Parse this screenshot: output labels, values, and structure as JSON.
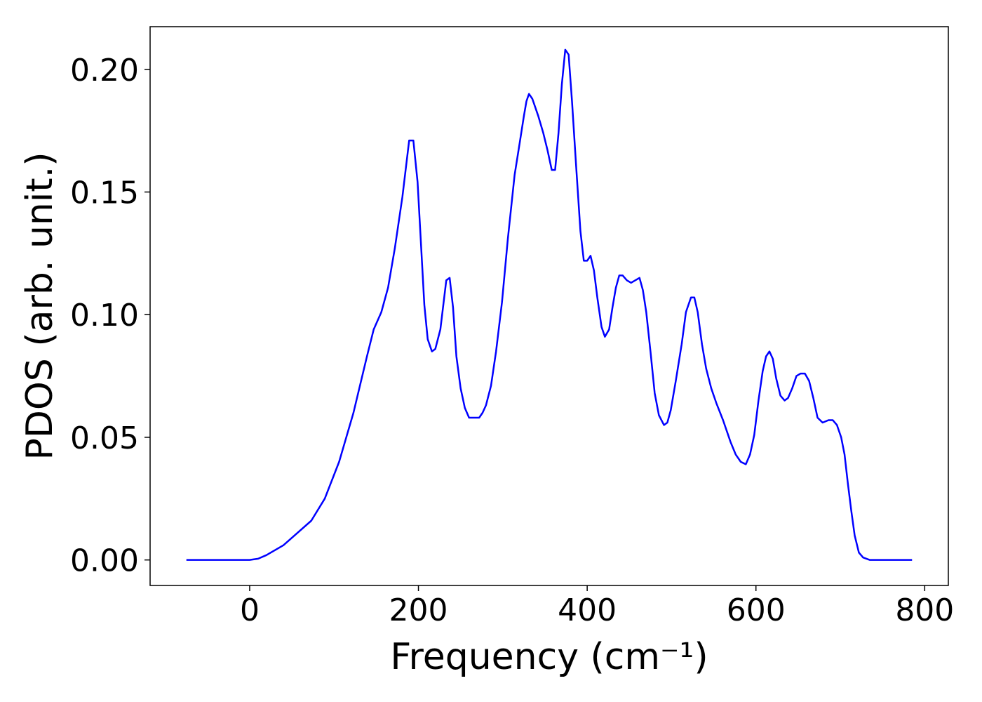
{
  "chart_data": {
    "type": "line",
    "x_label": "Frequency (cm⁻¹)",
    "y_label": "PDOS (arb. unit.)",
    "xlim": [
      -118,
      828
    ],
    "ylim": [
      -0.0104,
      0.2174
    ],
    "xticks": [
      0,
      200,
      400,
      600,
      800
    ],
    "yticks": [
      {
        "value": 0,
        "label": "0.00"
      },
      {
        "value": 0.05,
        "label": "0.05"
      },
      {
        "value": 0.1,
        "label": "0.10"
      },
      {
        "value": 0.15,
        "label": "0.15"
      },
      {
        "value": 0.2,
        "label": "0.20"
      }
    ],
    "grid": false,
    "series": [
      {
        "color": "#0000ff",
        "x": [
          -75,
          0,
          10,
          20,
          30,
          40,
          73,
          89,
          106,
          123,
          139,
          147,
          156,
          164,
          172,
          181,
          189,
          194,
          199,
          207,
          211,
          216,
          220,
          226,
          233,
          237,
          241,
          245,
          250,
          255,
          260,
          267,
          272,
          276,
          280,
          286,
          292,
          299,
          306,
          314,
          320,
          325,
          328,
          331,
          335,
          342,
          348,
          353,
          358,
          362,
          366,
          370,
          374,
          378,
          382,
          387,
          392,
          396,
          400,
          404,
          408,
          412,
          417,
          421,
          426,
          430,
          434,
          438,
          442,
          447,
          452,
          457,
          462,
          466,
          470,
          475,
          480,
          485,
          491,
          495,
          499,
          505,
          512,
          517,
          523,
          527,
          531,
          536,
          541,
          547,
          553,
          561,
          570,
          576,
          582,
          588,
          593,
          598,
          603,
          608,
          612,
          616,
          620,
          624,
          629,
          634,
          638,
          643,
          648,
          653,
          658,
          663,
          668,
          673,
          679,
          686,
          691,
          696,
          701,
          705,
          709,
          713,
          717,
          722,
          727,
          735,
          785
        ],
        "values": [
          0,
          0,
          0.0005,
          0.002,
          0.004,
          0.006,
          0.016,
          0.025,
          0.04,
          0.06,
          0.083,
          0.094,
          0.101,
          0.111,
          0.127,
          0.148,
          0.171,
          0.171,
          0.154,
          0.104,
          0.09,
          0.085,
          0.086,
          0.094,
          0.114,
          0.115,
          0.103,
          0.083,
          0.07,
          0.062,
          0.058,
          0.058,
          0.058,
          0.06,
          0.063,
          0.071,
          0.085,
          0.105,
          0.131,
          0.157,
          0.17,
          0.181,
          0.187,
          0.19,
          0.188,
          0.181,
          0.174,
          0.167,
          0.159,
          0.159,
          0.174,
          0.194,
          0.208,
          0.206,
          0.187,
          0.16,
          0.134,
          0.122,
          0.122,
          0.124,
          0.118,
          0.107,
          0.095,
          0.091,
          0.094,
          0.103,
          0.111,
          0.116,
          0.116,
          0.114,
          0.113,
          0.114,
          0.115,
          0.11,
          0.101,
          0.085,
          0.068,
          0.059,
          0.055,
          0.056,
          0.061,
          0.073,
          0.088,
          0.101,
          0.107,
          0.107,
          0.101,
          0.088,
          0.078,
          0.07,
          0.064,
          0.057,
          0.048,
          0.043,
          0.04,
          0.039,
          0.043,
          0.051,
          0.065,
          0.077,
          0.083,
          0.085,
          0.082,
          0.074,
          0.067,
          0.065,
          0.066,
          0.07,
          0.075,
          0.076,
          0.076,
          0.073,
          0.066,
          0.058,
          0.056,
          0.057,
          0.057,
          0.055,
          0.05,
          0.043,
          0.031,
          0.02,
          0.01,
          0.003,
          0.001,
          0,
          0
        ]
      }
    ]
  }
}
